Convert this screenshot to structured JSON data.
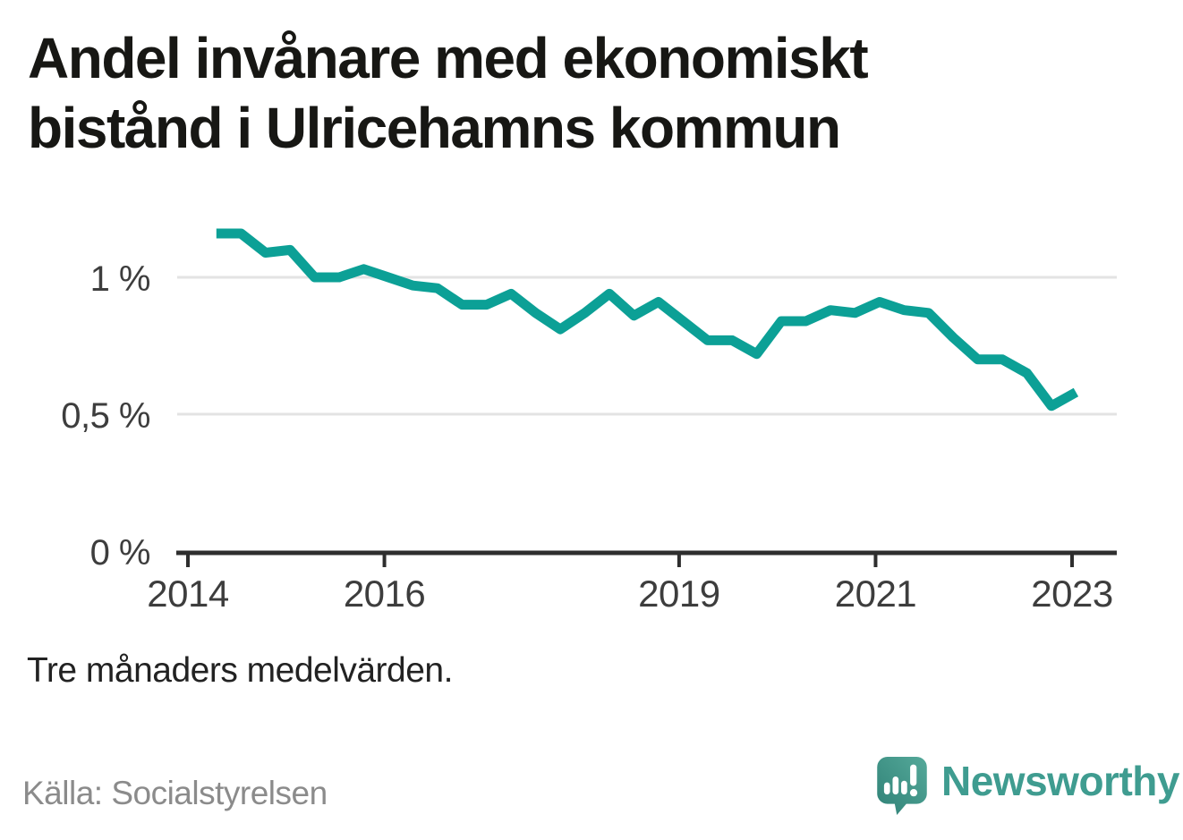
{
  "title": "Andel invånare med ekonomiskt bistånd i Ulricehamns kommun",
  "subtitle": "Tre månaders medelvärden.",
  "source": "Källa: Socialstyrelsen",
  "brand": {
    "name": "Newsworthy",
    "wordmark_color": "#3f9c90",
    "logo_gradient_start": "#55a99a",
    "logo_gradient_end": "#2f8176"
  },
  "colors": {
    "line": "#0ca096",
    "grid": "#e3e3e3",
    "axis": "#2e2e2e",
    "label": "#3d3d3d"
  },
  "chart_data": {
    "type": "line",
    "title": "Andel invånare med ekonomiskt bistånd i Ulricehamns kommun",
    "note": "Tre månaders medelvärden.",
    "unit": "%",
    "grid": "horizontal",
    "legend": "none",
    "xlim": [
      2013.9,
      2023.45
    ],
    "ylim": [
      0,
      1.3
    ],
    "y_ticks": [
      {
        "label": "0 %",
        "value": 0
      },
      {
        "label": "0,5 %",
        "value": 0.5
      },
      {
        "label": "1 %",
        "value": 1
      }
    ],
    "x_ticks": [
      {
        "label": "2014",
        "year": 2014
      },
      {
        "label": "2016",
        "year": 2016
      },
      {
        "label": "2019",
        "year": 2019
      },
      {
        "label": "2021",
        "year": 2021
      },
      {
        "label": "2023",
        "year": 2023
      }
    ],
    "series": [
      {
        "name": "Andel invånare med ekonomiskt bistånd",
        "color": "#0ca096",
        "periods": [
          "2014-04",
          "2014-07",
          "2014-10",
          "2015-01",
          "2015-04",
          "2015-07",
          "2015-10",
          "2016-01",
          "2016-04",
          "2016-07",
          "2016-10",
          "2017-01",
          "2017-04",
          "2017-07",
          "2017-10",
          "2018-01",
          "2018-04",
          "2018-07",
          "2018-10",
          "2019-01",
          "2019-04",
          "2019-07",
          "2019-10",
          "2020-01",
          "2020-04",
          "2020-07",
          "2020-10",
          "2021-01",
          "2021-04",
          "2021-07",
          "2021-10",
          "2022-01",
          "2022-04",
          "2022-07",
          "2022-10",
          "2023-01"
        ],
        "x": [
          2014.29,
          2014.54,
          2014.79,
          2015.04,
          2015.29,
          2015.54,
          2015.79,
          2016.04,
          2016.29,
          2016.54,
          2016.79,
          2017.04,
          2017.29,
          2017.54,
          2017.79,
          2018.04,
          2018.29,
          2018.54,
          2018.79,
          2019.04,
          2019.29,
          2019.54,
          2019.79,
          2020.04,
          2020.29,
          2020.54,
          2020.79,
          2021.04,
          2021.29,
          2021.54,
          2021.79,
          2022.04,
          2022.29,
          2022.54,
          2022.79,
          2023.04
        ],
        "values": [
          1.16,
          1.16,
          1.09,
          1.1,
          1.0,
          1.0,
          1.03,
          1.0,
          0.97,
          0.96,
          0.9,
          0.9,
          0.94,
          0.87,
          0.81,
          0.87,
          0.94,
          0.86,
          0.91,
          0.84,
          0.77,
          0.77,
          0.72,
          0.84,
          0.84,
          0.88,
          0.87,
          0.91,
          0.88,
          0.87,
          0.78,
          0.7,
          0.7,
          0.65,
          0.53,
          0.58
        ]
      }
    ]
  }
}
